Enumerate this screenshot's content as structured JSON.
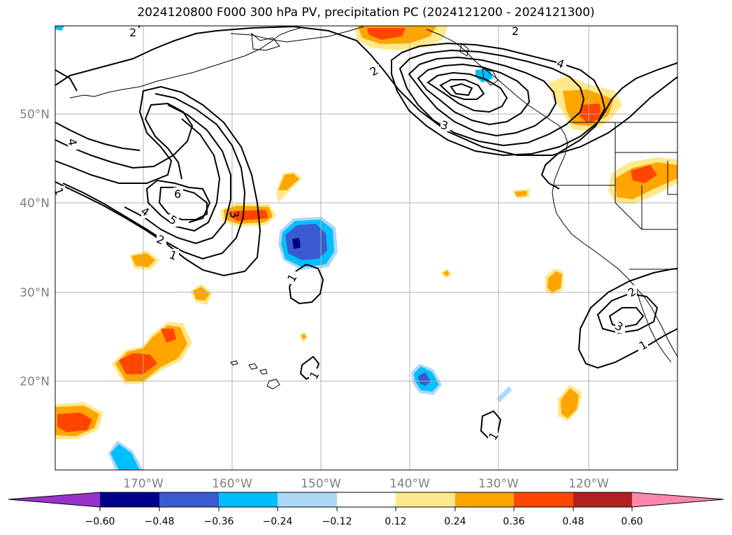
{
  "title": "2024120800 F000 300 hPa PV, precipitation PC (2024121200 - 2024121300)",
  "map": {
    "lat_labels": [
      "50°N",
      "40°N",
      "30°N",
      "20°N"
    ],
    "lon_labels": [
      "170°W",
      "160°W",
      "150°W",
      "140°W",
      "130°W",
      "120°W"
    ],
    "pv_contour_labels": [
      "2",
      "2",
      "2",
      "3",
      "4",
      "4",
      "1",
      "6",
      "4",
      "5",
      "2",
      "1",
      "3",
      "1",
      "1",
      "2",
      "3",
      "1",
      "1"
    ]
  },
  "colorbar": {
    "tick_labels": [
      "−0.60",
      "−0.48",
      "−0.36",
      "−0.24",
      "−0.12",
      "0.12",
      "0.24",
      "0.36",
      "0.48",
      "0.60"
    ],
    "colors": [
      "#9932cc",
      "#00008b",
      "#3a5bcd",
      "#00bfff",
      "#add8f8",
      "#ffffff",
      "#fde98c",
      "#ffa500",
      "#ff4500",
      "#b22222",
      "#ff88aa"
    ]
  }
}
